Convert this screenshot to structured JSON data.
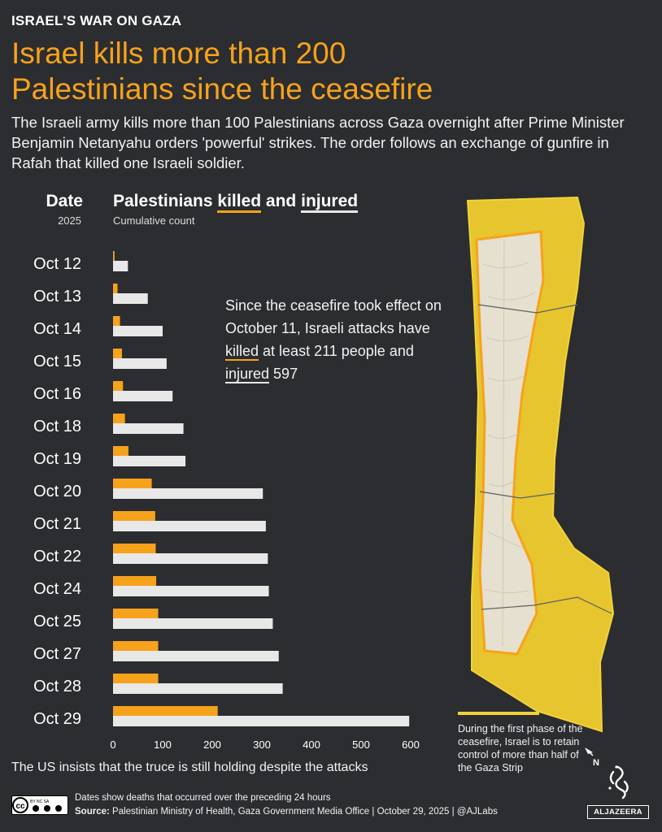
{
  "header": {
    "kicker": "ISRAEL'S WAR ON GAZA",
    "title": "Israel kills more than 200 Palestinians since the ceasefire",
    "intro": "The Israeli army kills more than 100 Palestinians across Gaza overnight after Prime Minister Benjamin Netanyahu orders 'powerful' strikes. The order follows an exchange of gunfire in Rafah that killed one Israeli soldier."
  },
  "chart_data": {
    "type": "bar",
    "orientation": "horizontal",
    "title_prefix": "Palestinians ",
    "title_killed": "killed",
    "title_and": " and ",
    "title_injured": "injured",
    "subtitle": "Cumulative count",
    "ylabel": "Date",
    "ylabel_sub": "2025",
    "categories": [
      "Oct 12",
      "Oct 13",
      "Oct 14",
      "Oct 15",
      "Oct 16",
      "Oct 18",
      "Oct 19",
      "Oct 20",
      "Oct 21",
      "Oct 22",
      "Oct 24",
      "Oct 25",
      "Oct 27",
      "Oct 28",
      "Oct 29"
    ],
    "series": [
      {
        "key": "killed",
        "color": "#f7a21b",
        "values": [
          3,
          9,
          14,
          18,
          20,
          24,
          31,
          78,
          85,
          86,
          87,
          91,
          91,
          91,
          211
        ]
      },
      {
        "key": "injured",
        "color": "#e8e8e8",
        "values": [
          30,
          70,
          100,
          108,
          120,
          142,
          146,
          302,
          308,
          312,
          314,
          322,
          334,
          342,
          597
        ]
      }
    ],
    "xlim": [
      0,
      600
    ],
    "xticks": [
      0,
      100,
      200,
      300,
      400,
      500,
      600
    ],
    "grid": false,
    "legend": "none"
  },
  "annotation": {
    "part1": "Since the ceasefire took effect on October 11, Israeli attacks have ",
    "killed": "killed",
    "part2": " at least 211 people and ",
    "injured": "injured",
    "part3": " 597"
  },
  "map": {
    "legend_text": "During the first phase of the ceasefire, Israel is to retain control of more than half of the Gaza Strip",
    "north_label": "N",
    "control_color": "#f1d33a",
    "strip_color": "#e5e0cf"
  },
  "footer": {
    "truce_note": "The US insists that the truce is still holding despite the attacks",
    "footnote": "Dates show deaths that occurred over the preceding 24 hours",
    "source_label": "Source:",
    "source_text": " Palestinian Ministry of Health, Gaza Government Media Office  |  October 29, 2025  |  @AJLabs",
    "cc_label": "cc",
    "cc_terms": "BY  NC  SA",
    "logo_word": "ALJAZEERA"
  }
}
